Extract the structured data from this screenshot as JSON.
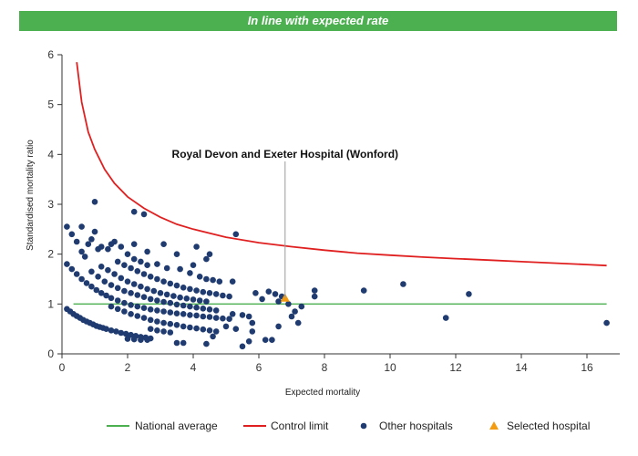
{
  "banner": {
    "text": "In line with expected rate",
    "color": "#4caf50"
  },
  "chart_data": {
    "type": "scatter",
    "title": "",
    "xlabel": "Expected mortality",
    "ylabel": "Standardised mortality ratio",
    "xlim": [
      0,
      17
    ],
    "ylim": [
      0,
      6
    ],
    "xticks": [
      0,
      2,
      4,
      6,
      8,
      10,
      12,
      14,
      16
    ],
    "yticks": [
      0,
      1,
      2,
      3,
      4,
      5,
      6
    ],
    "grid": false,
    "legend_position": "bottom",
    "annotation": {
      "text": "Royal Devon and Exeter Hospital (Wonford)",
      "x": 6.8,
      "y": 1.12
    },
    "series": [
      {
        "name": "National average",
        "kind": "line",
        "color": "#4caf50",
        "points": [
          [
            0.35,
            1.0
          ],
          [
            16.6,
            1.0
          ]
        ]
      },
      {
        "name": "Control limit",
        "kind": "line",
        "color": "#e02020",
        "points": [
          [
            0.45,
            5.85
          ],
          [
            0.6,
            5.05
          ],
          [
            0.8,
            4.45
          ],
          [
            1.0,
            4.1
          ],
          [
            1.3,
            3.7
          ],
          [
            1.6,
            3.42
          ],
          [
            2.0,
            3.15
          ],
          [
            2.5,
            2.92
          ],
          [
            3.0,
            2.74
          ],
          [
            3.5,
            2.6
          ],
          [
            4.0,
            2.5
          ],
          [
            5.0,
            2.34
          ],
          [
            6.0,
            2.23
          ],
          [
            7.0,
            2.15
          ],
          [
            8.0,
            2.08
          ],
          [
            9.0,
            2.02
          ],
          [
            10.0,
            1.98
          ],
          [
            11.0,
            1.94
          ],
          [
            12.0,
            1.91
          ],
          [
            13.0,
            1.88
          ],
          [
            14.0,
            1.85
          ],
          [
            15.0,
            1.82
          ],
          [
            16.0,
            1.79
          ],
          [
            16.6,
            1.77
          ]
        ]
      },
      {
        "name": "Other hospitals",
        "kind": "scatter",
        "color": "#1f3b70",
        "points": [
          [
            0.15,
            2.55
          ],
          [
            0.3,
            2.4
          ],
          [
            0.45,
            2.25
          ],
          [
            0.6,
            2.05
          ],
          [
            0.7,
            1.95
          ],
          [
            0.9,
            2.3
          ],
          [
            1.0,
            2.45
          ],
          [
            1.1,
            2.1
          ],
          [
            0.6,
            2.55
          ],
          [
            0.8,
            2.2
          ],
          [
            1.0,
            3.05
          ],
          [
            1.2,
            2.15
          ],
          [
            1.4,
            2.1
          ],
          [
            1.6,
            2.25
          ],
          [
            1.8,
            2.15
          ],
          [
            2.0,
            2.0
          ],
          [
            2.2,
            2.85
          ],
          [
            2.5,
            2.8
          ],
          [
            2.2,
            2.2
          ],
          [
            2.6,
            2.05
          ],
          [
            3.1,
            2.2
          ],
          [
            3.5,
            2.0
          ],
          [
            4.1,
            2.15
          ],
          [
            4.5,
            2.0
          ],
          [
            5.3,
            2.4
          ],
          [
            1.5,
            2.2
          ],
          [
            0.15,
            1.8
          ],
          [
            0.3,
            1.7
          ],
          [
            0.45,
            1.6
          ],
          [
            0.6,
            1.5
          ],
          [
            0.75,
            1.42
          ],
          [
            0.9,
            1.35
          ],
          [
            1.05,
            1.28
          ],
          [
            1.2,
            1.22
          ],
          [
            1.35,
            1.17
          ],
          [
            1.5,
            1.12
          ],
          [
            1.7,
            1.07
          ],
          [
            1.9,
            1.02
          ],
          [
            2.1,
            0.98
          ],
          [
            2.3,
            0.95
          ],
          [
            2.5,
            0.92
          ],
          [
            2.7,
            0.89
          ],
          [
            2.9,
            0.87
          ],
          [
            3.1,
            0.85
          ],
          [
            3.3,
            0.83
          ],
          [
            3.5,
            0.81
          ],
          [
            3.7,
            0.8
          ],
          [
            3.9,
            0.78
          ],
          [
            4.1,
            0.77
          ],
          [
            4.3,
            0.75
          ],
          [
            4.5,
            0.74
          ],
          [
            4.7,
            0.72
          ],
          [
            4.9,
            0.71
          ],
          [
            5.1,
            0.7
          ],
          [
            0.9,
            1.65
          ],
          [
            1.1,
            1.55
          ],
          [
            1.3,
            1.45
          ],
          [
            1.5,
            1.38
          ],
          [
            1.7,
            1.32
          ],
          [
            1.9,
            1.26
          ],
          [
            2.1,
            1.22
          ],
          [
            2.3,
            1.18
          ],
          [
            2.5,
            1.14
          ],
          [
            2.7,
            1.1
          ],
          [
            2.9,
            1.07
          ],
          [
            3.1,
            1.04
          ],
          [
            3.3,
            1.02
          ],
          [
            3.5,
            0.99
          ],
          [
            3.7,
            0.97
          ],
          [
            3.9,
            0.95
          ],
          [
            4.1,
            0.93
          ],
          [
            4.3,
            0.91
          ],
          [
            4.5,
            0.89
          ],
          [
            4.7,
            0.87
          ],
          [
            1.2,
            1.75
          ],
          [
            1.4,
            1.68
          ],
          [
            1.6,
            1.6
          ],
          [
            1.8,
            1.52
          ],
          [
            2.0,
            1.45
          ],
          [
            2.2,
            1.4
          ],
          [
            2.4,
            1.35
          ],
          [
            2.6,
            1.3
          ],
          [
            2.8,
            1.26
          ],
          [
            3.0,
            1.22
          ],
          [
            3.2,
            1.19
          ],
          [
            3.4,
            1.16
          ],
          [
            3.6,
            1.13
          ],
          [
            3.8,
            1.11
          ],
          [
            4.0,
            1.09
          ],
          [
            4.2,
            1.07
          ],
          [
            4.4,
            1.05
          ],
          [
            1.7,
            1.85
          ],
          [
            1.9,
            1.78
          ],
          [
            2.1,
            1.72
          ],
          [
            2.3,
            1.66
          ],
          [
            2.5,
            1.6
          ],
          [
            2.7,
            1.55
          ],
          [
            2.9,
            1.5
          ],
          [
            3.1,
            1.45
          ],
          [
            3.3,
            1.41
          ],
          [
            3.5,
            1.37
          ],
          [
            3.7,
            1.33
          ],
          [
            3.9,
            1.3
          ],
          [
            4.1,
            1.27
          ],
          [
            4.3,
            1.24
          ],
          [
            4.5,
            1.22
          ],
          [
            4.7,
            1.2
          ],
          [
            4.9,
            1.17
          ],
          [
            5.1,
            1.15
          ],
          [
            2.2,
            1.9
          ],
          [
            2.4,
            1.85
          ],
          [
            2.6,
            1.78
          ],
          [
            2.9,
            1.8
          ],
          [
            3.2,
            1.72
          ],
          [
            3.6,
            1.7
          ],
          [
            3.9,
            1.62
          ],
          [
            4.2,
            1.55
          ],
          [
            4.4,
            1.5
          ],
          [
            4.6,
            1.48
          ],
          [
            4.8,
            1.45
          ],
          [
            4.4,
            1.9
          ],
          [
            5.2,
            1.45
          ],
          [
            4.0,
            1.78
          ],
          [
            0.15,
            0.9
          ],
          [
            0.25,
            0.85
          ],
          [
            0.35,
            0.8
          ],
          [
            0.45,
            0.76
          ],
          [
            0.55,
            0.72
          ],
          [
            0.65,
            0.68
          ],
          [
            0.75,
            0.65
          ],
          [
            0.85,
            0.62
          ],
          [
            0.95,
            0.59
          ],
          [
            1.05,
            0.56
          ],
          [
            1.15,
            0.54
          ],
          [
            1.25,
            0.52
          ],
          [
            1.35,
            0.5
          ],
          [
            1.5,
            0.47
          ],
          [
            1.65,
            0.45
          ],
          [
            1.8,
            0.42
          ],
          [
            1.95,
            0.4
          ],
          [
            2.1,
            0.38
          ],
          [
            2.25,
            0.36
          ],
          [
            2.4,
            0.34
          ],
          [
            2.55,
            0.33
          ],
          [
            2.7,
            0.31
          ],
          [
            1.5,
            0.95
          ],
          [
            1.7,
            0.9
          ],
          [
            1.9,
            0.85
          ],
          [
            2.1,
            0.8
          ],
          [
            2.3,
            0.76
          ],
          [
            2.5,
            0.72
          ],
          [
            2.7,
            0.68
          ],
          [
            2.9,
            0.65
          ],
          [
            3.1,
            0.62
          ],
          [
            3.3,
            0.6
          ],
          [
            3.5,
            0.58
          ],
          [
            3.7,
            0.55
          ],
          [
            3.9,
            0.53
          ],
          [
            4.1,
            0.51
          ],
          [
            4.3,
            0.49
          ],
          [
            4.5,
            0.47
          ],
          [
            4.7,
            0.45
          ],
          [
            2.7,
            0.5
          ],
          [
            2.9,
            0.47
          ],
          [
            3.1,
            0.45
          ],
          [
            3.3,
            0.43
          ],
          [
            2.0,
            0.3
          ],
          [
            2.2,
            0.29
          ],
          [
            2.4,
            0.28
          ],
          [
            2.6,
            0.28
          ],
          [
            3.5,
            0.22
          ],
          [
            3.7,
            0.22
          ],
          [
            4.4,
            0.2
          ],
          [
            4.6,
            0.35
          ],
          [
            5.0,
            0.55
          ],
          [
            5.3,
            0.5
          ],
          [
            5.5,
            0.15
          ],
          [
            5.7,
            0.25
          ],
          [
            6.2,
            0.28
          ],
          [
            6.4,
            0.28
          ],
          [
            5.8,
            0.45
          ],
          [
            6.6,
            0.55
          ],
          [
            5.5,
            0.78
          ],
          [
            5.7,
            0.75
          ],
          [
            5.8,
            0.62
          ],
          [
            5.2,
            0.8
          ],
          [
            5.9,
            1.22
          ],
          [
            6.1,
            1.1
          ],
          [
            6.3,
            1.25
          ],
          [
            6.5,
            1.2
          ],
          [
            6.6,
            1.05
          ],
          [
            6.7,
            1.15
          ],
          [
            6.9,
            1.0
          ],
          [
            7.0,
            0.75
          ],
          [
            7.1,
            0.85
          ],
          [
            7.2,
            0.62
          ],
          [
            7.3,
            0.95
          ],
          [
            7.7,
            1.27
          ],
          [
            7.7,
            1.15
          ],
          [
            9.2,
            1.27
          ],
          [
            10.4,
            1.4
          ],
          [
            11.7,
            0.72
          ],
          [
            12.4,
            1.2
          ],
          [
            16.6,
            0.62
          ]
        ]
      },
      {
        "name": "Selected hospital",
        "kind": "marker",
        "marker": "triangle",
        "color": "#f39c12",
        "points": [
          [
            6.8,
            1.12
          ]
        ]
      }
    ]
  }
}
